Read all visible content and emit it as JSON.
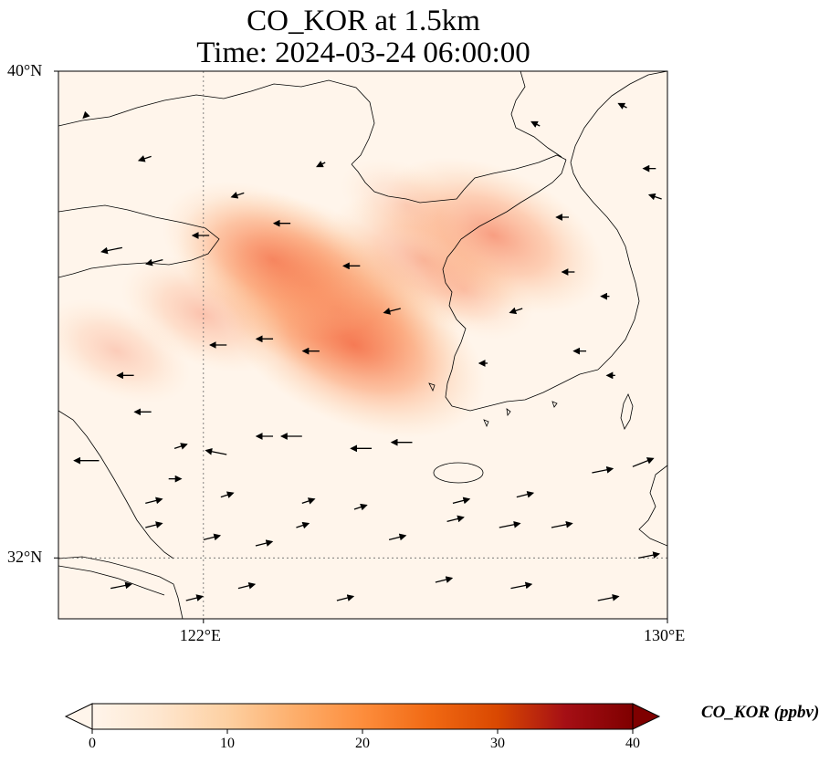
{
  "title": {
    "line1": "CO_KOR at 1.5km",
    "line2": "Time: 2024-03-24 06:00:00"
  },
  "map": {
    "lon_range": [
      119.5,
      130
    ],
    "lat_range": [
      31,
      40
    ],
    "lat_ticks": [
      {
        "value": 40,
        "label": "40°N"
      },
      {
        "value": 32,
        "label": "32°N"
      }
    ],
    "lon_ticks": [
      {
        "value": 122,
        "label": "122°E"
      },
      {
        "value": 130,
        "label": "130°E"
      }
    ],
    "gridlines": [
      {
        "axis": "lon",
        "value": 122
      },
      {
        "axis": "lat",
        "value": 32
      }
    ],
    "background_color": "#fff5eb",
    "coastline_color": "#000000"
  },
  "colorbar": {
    "label": "CO_KOR (ppbv)",
    "min": 0,
    "max": 40,
    "ticks": [
      {
        "value": 0,
        "label": "0"
      },
      {
        "value": 10,
        "label": "10"
      },
      {
        "value": 20,
        "label": "20"
      },
      {
        "value": 30,
        "label": "30"
      },
      {
        "value": 40,
        "label": "40"
      }
    ],
    "colormap": [
      "#fff5eb",
      "#fee6ce",
      "#fdd0a2",
      "#fdae6b",
      "#fd8d3c",
      "#f16913",
      "#d94801",
      "#a50f15",
      "#7f0000"
    ],
    "extend": "both"
  },
  "plumes": [
    {
      "lon": 123.8,
      "lat": 36.5,
      "value": 22
    },
    {
      "lon": 124.3,
      "lat": 36.1,
      "value": 20
    },
    {
      "lon": 124.6,
      "lat": 35.5,
      "value": 22
    },
    {
      "lon": 123.2,
      "lat": 36.9,
      "value": 17
    },
    {
      "lon": 125.8,
      "lat": 36.9,
      "value": 13
    },
    {
      "lon": 127.0,
      "lat": 37.3,
      "value": 17
    },
    {
      "lon": 122.0,
      "lat": 36.0,
      "value": 10
    },
    {
      "lon": 120.5,
      "lat": 35.4,
      "value": 8
    },
    {
      "lon": 126.5,
      "lat": 36.4,
      "value": 7
    },
    {
      "lon": 125.5,
      "lat": 37.8,
      "value": 6
    }
  ],
  "wind_vectors": [
    {
      "lon": 120.0,
      "lat": 39.3,
      "u": -1,
      "v": -1
    },
    {
      "lon": 121.1,
      "lat": 38.6,
      "u": -3,
      "v": -1
    },
    {
      "lon": 122.7,
      "lat": 38.0,
      "u": -3,
      "v": -1
    },
    {
      "lon": 124.1,
      "lat": 38.5,
      "u": -2,
      "v": -1
    },
    {
      "lon": 120.6,
      "lat": 37.1,
      "u": -5,
      "v": -1
    },
    {
      "lon": 121.3,
      "lat": 36.9,
      "u": -4,
      "v": -1
    },
    {
      "lon": 122.1,
      "lat": 37.3,
      "u": -4,
      "v": 0
    },
    {
      "lon": 123.5,
      "lat": 37.5,
      "u": -4,
      "v": 0
    },
    {
      "lon": 124.7,
      "lat": 36.8,
      "u": -4,
      "v": 0
    },
    {
      "lon": 125.4,
      "lat": 36.1,
      "u": -4,
      "v": -1
    },
    {
      "lon": 122.4,
      "lat": 35.5,
      "u": -4,
      "v": 0
    },
    {
      "lon": 123.2,
      "lat": 35.6,
      "u": -4,
      "v": 0
    },
    {
      "lon": 124.0,
      "lat": 35.4,
      "u": -4,
      "v": 0
    },
    {
      "lon": 121.1,
      "lat": 34.4,
      "u": -4,
      "v": 0
    },
    {
      "lon": 122.4,
      "lat": 33.7,
      "u": -5,
      "v": 1
    },
    {
      "lon": 123.2,
      "lat": 34.0,
      "u": -4,
      "v": 0
    },
    {
      "lon": 123.7,
      "lat": 34.0,
      "u": -5,
      "v": 0
    },
    {
      "lon": 120.2,
      "lat": 33.6,
      "u": -6,
      "v": 0
    },
    {
      "lon": 124.9,
      "lat": 33.8,
      "u": -5,
      "v": 0
    },
    {
      "lon": 125.6,
      "lat": 33.9,
      "u": -5,
      "v": 0
    },
    {
      "lon": 127.5,
      "lat": 36.1,
      "u": -3,
      "v": -1
    },
    {
      "lon": 128.4,
      "lat": 36.7,
      "u": -3,
      "v": 0
    },
    {
      "lon": 129.9,
      "lat": 37.9,
      "u": -3,
      "v": 1
    },
    {
      "lon": 129.4,
      "lat": 33.5,
      "u": 5,
      "v": 2
    },
    {
      "lon": 128.7,
      "lat": 33.4,
      "u": 5,
      "v": 1
    },
    {
      "lon": 128.0,
      "lat": 32.5,
      "u": 5,
      "v": 1
    },
    {
      "lon": 127.1,
      "lat": 32.5,
      "u": 5,
      "v": 1
    },
    {
      "lon": 126.2,
      "lat": 32.6,
      "u": 4,
      "v": 1
    },
    {
      "lon": 125.2,
      "lat": 32.3,
      "u": 4,
      "v": 1
    },
    {
      "lon": 124.6,
      "lat": 32.8,
      "u": 3,
      "v": 1
    },
    {
      "lon": 123.6,
      "lat": 32.5,
      "u": 3,
      "v": 1
    },
    {
      "lon": 122.9,
      "lat": 32.2,
      "u": 4,
      "v": 1
    },
    {
      "lon": 122.0,
      "lat": 32.3,
      "u": 4,
      "v": 1
    },
    {
      "lon": 121.0,
      "lat": 32.5,
      "u": 4,
      "v": 1
    },
    {
      "lon": 120.4,
      "lat": 31.5,
      "u": 5,
      "v": 1
    },
    {
      "lon": 121.7,
      "lat": 31.3,
      "u": 4,
      "v": 1
    },
    {
      "lon": 122.6,
      "lat": 31.5,
      "u": 4,
      "v": 1
    },
    {
      "lon": 124.3,
      "lat": 31.3,
      "u": 4,
      "v": 1
    },
    {
      "lon": 126.0,
      "lat": 31.6,
      "u": 4,
      "v": 1
    },
    {
      "lon": 127.3,
      "lat": 31.5,
      "u": 5,
      "v": 1
    },
    {
      "lon": 128.8,
      "lat": 31.3,
      "u": 5,
      "v": 1
    },
    {
      "lon": 129.5,
      "lat": 32.0,
      "u": 5,
      "v": 1
    },
    {
      "lon": 126.3,
      "lat": 32.9,
      "u": 4,
      "v": 1
    },
    {
      "lon": 127.4,
      "lat": 33.0,
      "u": 4,
      "v": 1
    },
    {
      "lon": 121.4,
      "lat": 33.3,
      "u": 3,
      "v": 0
    },
    {
      "lon": 121.0,
      "lat": 32.9,
      "u": 4,
      "v": 1
    },
    {
      "lon": 120.8,
      "lat": 35.0,
      "u": -4,
      "v": 0
    },
    {
      "lon": 121.5,
      "lat": 33.8,
      "u": 3,
      "v": 1
    },
    {
      "lon": 122.3,
      "lat": 33.0,
      "u": 3,
      "v": 1
    },
    {
      "lon": 123.7,
      "lat": 32.9,
      "u": 3,
      "v": 1
    },
    {
      "lon": 128.3,
      "lat": 37.6,
      "u": -3,
      "v": 0
    },
    {
      "lon": 129.0,
      "lat": 36.3,
      "u": -2,
      "v": 0
    },
    {
      "lon": 128.6,
      "lat": 35.4,
      "u": -3,
      "v": 0
    },
    {
      "lon": 129.1,
      "lat": 35.0,
      "u": -2,
      "v": 0
    },
    {
      "lon": 129.8,
      "lat": 38.4,
      "u": -3,
      "v": 0
    },
    {
      "lon": 129.3,
      "lat": 39.4,
      "u": -2,
      "v": 1
    },
    {
      "lon": 127.8,
      "lat": 39.1,
      "u": -2,
      "v": 1
    },
    {
      "lon": 126.9,
      "lat": 35.2,
      "u": -2,
      "v": 0
    }
  ]
}
